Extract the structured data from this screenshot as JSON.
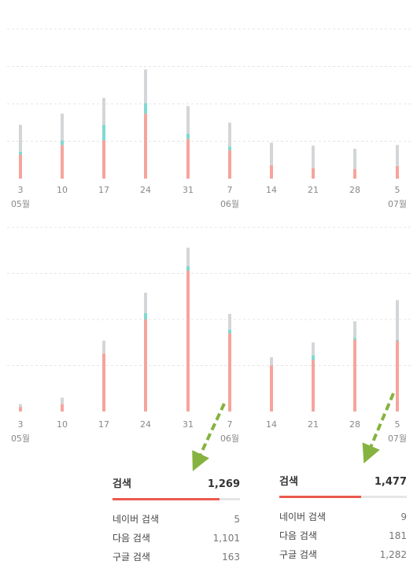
{
  "colors": {
    "naver": "#f6a49c",
    "daum": "#7fd9d2",
    "google": "#d3d6d8",
    "grid": "#e4e4e4",
    "arrow": "#86b33f",
    "accent": "#ea5a4e"
  },
  "chart_data": [
    {
      "type": "bar",
      "stacked": true,
      "grid": true,
      "categories": [
        "3",
        "10",
        "17",
        "24",
        "31",
        "7",
        "14",
        "21",
        "28",
        "5"
      ],
      "month_labels": [
        {
          "index": 0,
          "label": "05월"
        },
        {
          "index": 5,
          "label": "06월"
        },
        {
          "index": 9,
          "label": "07월"
        }
      ],
      "ylim": [
        0,
        200
      ],
      "series": [
        {
          "name": "네이버 검색",
          "color": "#f6a49c",
          "values": [
            32,
            45,
            51,
            87,
            53,
            38,
            18,
            14,
            13,
            17
          ]
        },
        {
          "name": "다음 검색",
          "color": "#7fd9d2",
          "values": [
            4,
            6,
            21,
            14,
            7,
            5,
            0,
            0,
            0,
            0
          ]
        },
        {
          "name": "구글 검색",
          "color": "#d3d6d8",
          "values": [
            36,
            36,
            36,
            45,
            37,
            32,
            30,
            30,
            27,
            28
          ]
        }
      ]
    },
    {
      "type": "bar",
      "stacked": true,
      "grid": true,
      "categories": [
        "3",
        "10",
        "17",
        "24",
        "31",
        "7",
        "14",
        "21",
        "28",
        "5"
      ],
      "month_labels": [
        {
          "index": 0,
          "label": "05월"
        },
        {
          "index": 5,
          "label": "06월"
        },
        {
          "index": 9,
          "label": "07월"
        }
      ],
      "ylim": [
        0,
        200
      ],
      "series": [
        {
          "name": "네이버 검색",
          "color": "#f6a49c",
          "values": [
            5,
            8,
            63,
            100,
            153,
            85,
            50,
            56,
            78,
            77
          ]
        },
        {
          "name": "다음 검색",
          "color": "#7fd9d2",
          "values": [
            0,
            0,
            0,
            7,
            5,
            4,
            0,
            5,
            2,
            1
          ]
        },
        {
          "name": "구글 검색",
          "color": "#d3d6d8",
          "values": [
            3,
            7,
            14,
            22,
            20,
            17,
            9,
            14,
            18,
            43
          ]
        }
      ]
    }
  ],
  "panels": [
    {
      "title": "검색",
      "total": "1,269",
      "fill_fraction": 0.84,
      "rows": [
        {
          "label": "네이버 검색",
          "value": "5"
        },
        {
          "label": "다음 검색",
          "value": "1,101"
        },
        {
          "label": "구글 검색",
          "value": "163"
        }
      ]
    },
    {
      "title": "검색",
      "total": "1,477",
      "fill_fraction": 0.64,
      "rows": [
        {
          "label": "네이버 검색",
          "value": "9"
        },
        {
          "label": "다음 검색",
          "value": "181"
        },
        {
          "label": "구글 검색",
          "value": "1,282"
        }
      ]
    }
  ]
}
